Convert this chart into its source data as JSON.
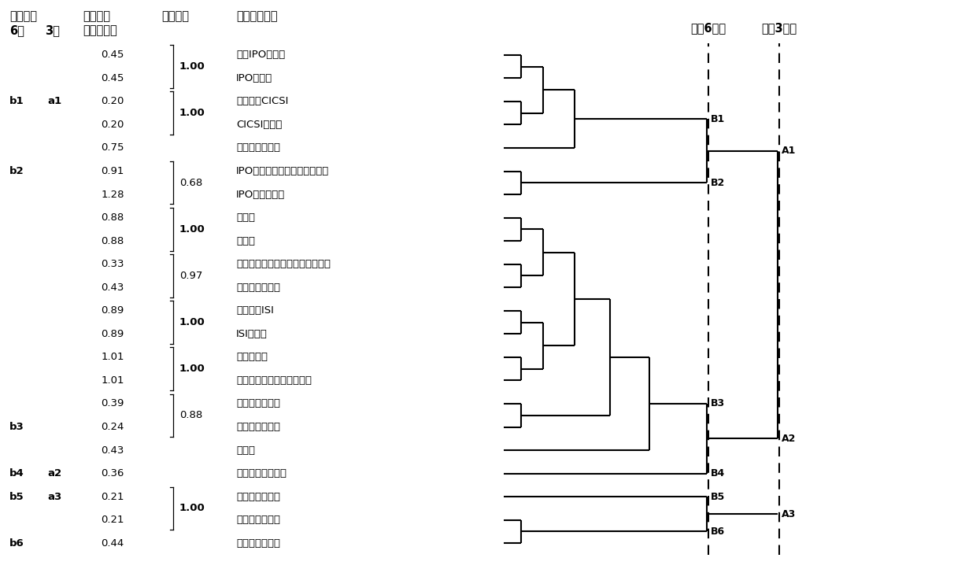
{
  "rows": [
    {
      "b6": "",
      "a6": "",
      "entropy": "0.45",
      "corr": "",
      "bold_corr": false,
      "name": "当月IPO的个数"
    },
    {
      "b6": "",
      "a6": "",
      "entropy": "0.45",
      "corr": "",
      "bold_corr": false,
      "name": "IPO数均值"
    },
    {
      "b6": "b1",
      "a6": "a1",
      "entropy": "0.20",
      "corr": "",
      "bold_corr": false,
      "name": "投资指数CICSI"
    },
    {
      "b6": "",
      "a6": "",
      "entropy": "0.20",
      "corr": "",
      "bold_corr": false,
      "name": "CICSI标准化"
    },
    {
      "b6": "",
      "a6": "",
      "entropy": "0.75",
      "corr": "",
      "bold_corr": false,
      "name": "封闭基金折价率"
    },
    {
      "b6": "b2",
      "a6": "",
      "entropy": "0.91",
      "corr": "",
      "bold_corr": false,
      "name": "IPO流通股数加权的平均收益率"
    },
    {
      "b6": "",
      "a6": "",
      "entropy": "1.28",
      "corr": "",
      "bold_corr": false,
      "name": "IPO首日收益率"
    },
    {
      "b6": "",
      "a6": "",
      "entropy": "0.88",
      "corr": "",
      "bold_corr": false,
      "name": "换手率"
    },
    {
      "b6": "",
      "a6": "",
      "entropy": "0.88",
      "corr": "",
      "bold_corr": false,
      "name": "成交量"
    },
    {
      "b6": "",
      "a6": "",
      "entropy": "0.33",
      "corr": "",
      "bold_corr": false,
      "name": "月交易金额与月流通市值的均值比"
    },
    {
      "b6": "",
      "a6": "",
      "entropy": "0.43",
      "corr": "",
      "bold_corr": false,
      "name": "上月市场换手率"
    },
    {
      "b6": "",
      "a6": "",
      "entropy": "0.89",
      "corr": "",
      "bold_corr": false,
      "name": "投资指数ISI"
    },
    {
      "b6": "",
      "a6": "",
      "entropy": "0.89",
      "corr": "",
      "bold_corr": false,
      "name": "ISI标准化"
    },
    {
      "b6": "",
      "a6": "",
      "entropy": "1.01",
      "corr": "",
      "bold_corr": false,
      "name": "新增开户数"
    },
    {
      "b6": "",
      "a6": "",
      "entropy": "1.01",
      "corr": "",
      "bold_corr": false,
      "name": "当月新增开户数目的三分位"
    },
    {
      "b6": "",
      "a6": "",
      "entropy": "0.39",
      "corr": "",
      "bold_corr": false,
      "name": "上证综指收盘价"
    },
    {
      "b6": "b3",
      "a6": "",
      "entropy": "0.24",
      "corr": "",
      "bold_corr": false,
      "name": "上月开户数对数"
    },
    {
      "b6": "",
      "a6": "",
      "entropy": "0.43",
      "corr": "",
      "bold_corr": false,
      "name": "心理线"
    },
    {
      "b6": "b4",
      "a6": "a2",
      "entropy": "0.36",
      "corr": "",
      "bold_corr": false,
      "name": "居民消费价格指数"
    },
    {
      "b6": "b5",
      "a6": "a3",
      "entropy": "0.21",
      "corr": "",
      "bold_corr": false,
      "name": "换手率一阶差分"
    },
    {
      "b6": "",
      "a6": "",
      "entropy": "0.21",
      "corr": "",
      "bold_corr": false,
      "name": "成交量一阶差分"
    },
    {
      "b6": "b6",
      "a6": "",
      "entropy": "0.44",
      "corr": "",
      "bold_corr": false,
      "name": "上证综指收益率"
    }
  ],
  "corr_groups": [
    {
      "rows": [
        0,
        1
      ],
      "corr": "1.00",
      "bold": true
    },
    {
      "rows": [
        2,
        3
      ],
      "corr": "1.00",
      "bold": true
    },
    {
      "rows": [
        5,
        6
      ],
      "corr": "0.68",
      "bold": false
    },
    {
      "rows": [
        7,
        8
      ],
      "corr": "1.00",
      "bold": true
    },
    {
      "rows": [
        9,
        10
      ],
      "corr": "0.97",
      "bold": false
    },
    {
      "rows": [
        11,
        12
      ],
      "corr": "1.00",
      "bold": true
    },
    {
      "rows": [
        13,
        14
      ],
      "corr": "1.00",
      "bold": true
    },
    {
      "rows": [
        15,
        16
      ],
      "corr": "0.88",
      "bold": false
    },
    {
      "rows": [
        19,
        20
      ],
      "corr": "1.00",
      "bold": true
    }
  ],
  "header": {
    "sel_result": "选择结果",
    "six_class": "6类",
    "three_class": "3类",
    "entropy_title1": "信息熵与",
    "entropy_title2": "最大熵之差",
    "corr_title": "相关系数",
    "name_title": "代理指标名称",
    "label6": "分成6大类",
    "label3": "分成3大类"
  }
}
